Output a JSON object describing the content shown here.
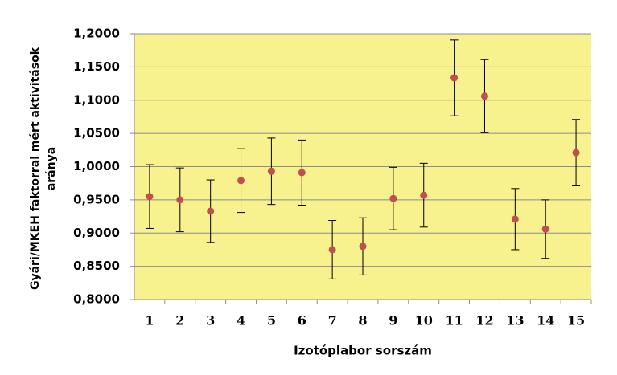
{
  "chart_data": {
    "type": "errorbar",
    "ylabel": [
      "Gyári/MKEH faktorral mért aktivitások",
      "aránya"
    ],
    "xlabel": "Izotóplabor sorszám",
    "categories": [
      "1",
      "2",
      "3",
      "4",
      "5",
      "6",
      "7",
      "8",
      "9",
      "10",
      "11",
      "12",
      "13",
      "14",
      "15"
    ],
    "values": [
      0.955,
      0.95,
      0.933,
      0.979,
      0.993,
      0.991,
      0.875,
      0.88,
      0.952,
      0.957,
      1.1335,
      1.106,
      0.921,
      0.906,
      1.021
    ],
    "errors": [
      0.048,
      0.048,
      0.047,
      0.048,
      0.05,
      0.049,
      0.044,
      0.043,
      0.047,
      0.048,
      0.057,
      0.055,
      0.046,
      0.044,
      0.05
    ],
    "color": "#c0504d",
    "background": "#f7f18e",
    "ylim": [
      0.8,
      1.2
    ],
    "yticks": [
      {
        "value": 0.8,
        "label": "0,8000"
      },
      {
        "value": 0.85,
        "label": "0,8500"
      },
      {
        "value": 0.9,
        "label": "0,9000"
      },
      {
        "value": 0.95,
        "label": "0,9500"
      },
      {
        "value": 1.0,
        "label": "1,0000"
      },
      {
        "value": 1.05,
        "label": "1,0500"
      },
      {
        "value": 1.1,
        "label": "1,1000"
      },
      {
        "value": 1.15,
        "label": "1,1500"
      },
      {
        "value": 1.2,
        "label": "1,2000"
      }
    ],
    "grid": true
  }
}
